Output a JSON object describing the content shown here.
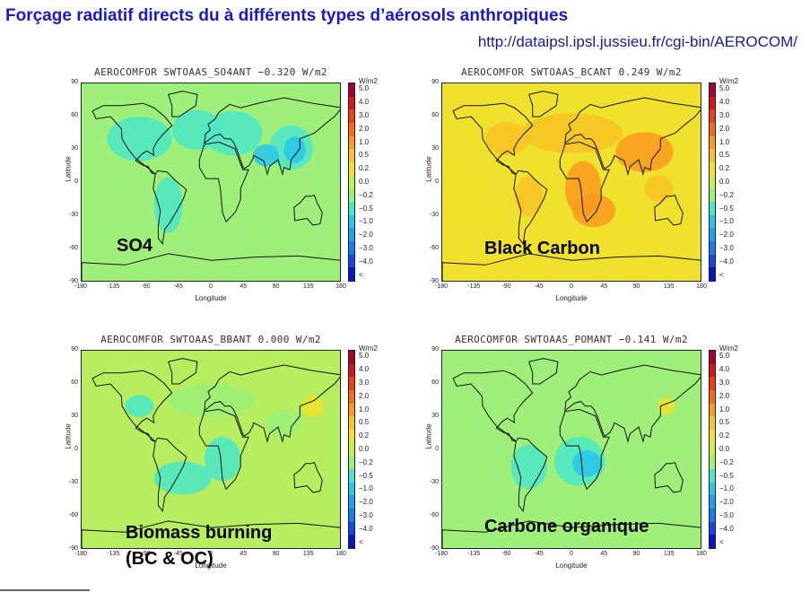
{
  "header": {
    "title": "Forçage radiatif directs du à différents types d’aérosols anthropiques",
    "url": "http://dataipsl.ipsl.jussieu.fr/cgi-bin/AEROCOM/"
  },
  "axes": {
    "ylabel": "Latitude",
    "xlabel": "Longitude",
    "yticks": [
      "90",
      "60",
      "30",
      "0",
      "-30",
      "-60",
      "-90"
    ],
    "xticks": [
      "-180",
      "-135",
      "-90",
      "-45",
      "0",
      "45",
      "90",
      "135",
      "180"
    ]
  },
  "colorbar": {
    "unit": "W/m2",
    "labels": [
      "5.0",
      "4.0",
      "3.0",
      "2.0",
      "1.0",
      "0.5",
      "0.2",
      "0.0",
      "−0.2",
      "−0.5",
      "−1.0",
      "−2.0",
      "−3.0",
      "−4.0",
      "<"
    ],
    "colors": [
      "#a8002a",
      "#d4141e",
      "#ee3c18",
      "#f66a18",
      "#fa9a1e",
      "#f8c324",
      "#f0e22c",
      "#c9ee4e",
      "#9ef07a",
      "#4ae6c8",
      "#28c6ec",
      "#20a0f0",
      "#1c78f0",
      "#1646e6",
      "#0a12cc"
    ]
  },
  "panels": [
    {
      "title": "AEROCOMFOR SWTOAAS_SO4ANT −0.320 W/m2",
      "label": "SO4",
      "base_color": "#9ef07a"
    },
    {
      "title": "AEROCOMFOR SWTOAAS_BCANT 0.249 W/m2",
      "label": "Black Carbon",
      "base_color": "#f0e22c"
    },
    {
      "title": "AEROCOMFOR SWTOAAS_BBANT 0.000 W/m2",
      "label_lines": [
        "Biomass burning",
        "(BC & OC)"
      ],
      "base_color": "#b6ee60"
    },
    {
      "title": "AEROCOMFOR SWTOAAS_POMANT −0.141 W/m2",
      "label": "Carbone organique",
      "base_color": "#9ef07a"
    }
  ]
}
